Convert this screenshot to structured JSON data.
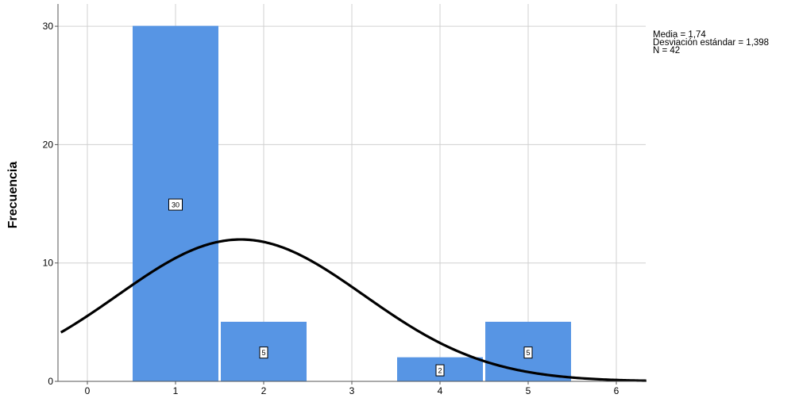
{
  "chart_data": {
    "type": "bar",
    "title": "",
    "xlabel": "",
    "ylabel": "Frecuencia",
    "x_ticks": [
      "0",
      "1",
      "2",
      "3",
      "4",
      "5",
      "6"
    ],
    "y_ticks": [
      "0",
      "10",
      "20",
      "30"
    ],
    "xlim": [
      -0.3,
      6.35
    ],
    "ylim": [
      0,
      31.8
    ],
    "grid": true,
    "bars": [
      {
        "x": 1,
        "value": 30,
        "label": "30"
      },
      {
        "x": 2,
        "value": 5,
        "label": "5"
      },
      {
        "x": 4,
        "value": 2,
        "label": "2"
      },
      {
        "x": 5,
        "value": 5,
        "label": "5"
      }
    ],
    "normal_curve": {
      "mean": 1.74,
      "sd": 1.398,
      "n": 42,
      "bin_width": 1
    },
    "bar_color": "#5795e4",
    "curve_color": "#000000"
  },
  "stats": {
    "mean_label": "Media = 1,74",
    "sd_label": "Desviación estándar = 1,398",
    "n_label": "N = 42"
  }
}
